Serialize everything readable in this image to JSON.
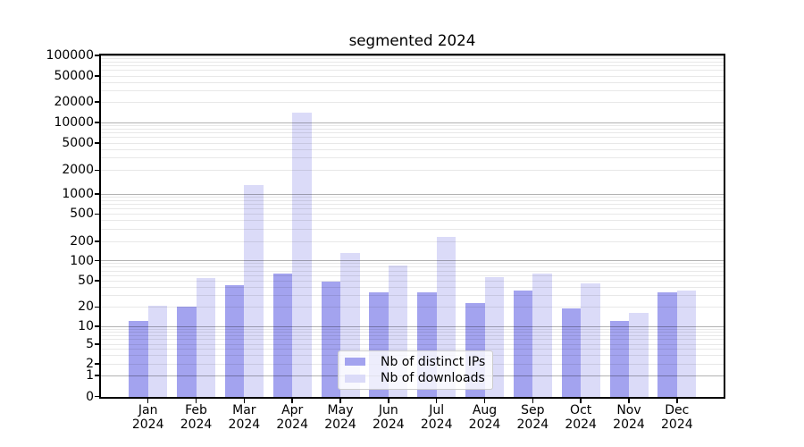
{
  "figure": {
    "background": "#ffffff"
  },
  "chart_data": {
    "type": "bar",
    "title": "segmented 2024",
    "categories": [
      "Jan",
      "Feb",
      "Mar",
      "Apr",
      "May",
      "Jun",
      "Jul",
      "Aug",
      "Sep",
      "Oct",
      "Nov",
      "Dec"
    ],
    "year_label": "2024",
    "series": [
      {
        "name": "Nb of distinct IPs",
        "color": "#a3a3ef",
        "values": [
          12,
          20,
          43,
          63,
          49,
          33,
          33,
          23,
          35,
          19,
          12,
          33
        ]
      },
      {
        "name": "Nb of downloads",
        "color": "#dbdbf8",
        "values": [
          21,
          55,
          1300,
          14000,
          130,
          85,
          230,
          57,
          64,
          45,
          16,
          36
        ]
      }
    ],
    "yscale": "log-like with 1-2-5 labeled steps, linear segment 0-1",
    "yticks": [
      0,
      1,
      2,
      5,
      10,
      20,
      50,
      100,
      200,
      500,
      1000,
      2000,
      5000,
      10000,
      20000,
      50000,
      100000
    ],
    "ytick_labels": [
      "0",
      "1",
      "2",
      "5",
      "10",
      "20",
      "50",
      "100",
      "200",
      "500",
      "1000",
      "2000",
      "5000",
      "10000",
      "20000",
      "50000",
      "100000"
    ],
    "ylim": [
      0,
      100000
    ],
    "grid": true,
    "grid_major_at": [
      1,
      10,
      100,
      1000,
      10000,
      100000
    ],
    "legend_position": "lower center"
  },
  "legend": {
    "items": [
      {
        "label": "Nb of distinct IPs",
        "color": "#a3a3ef"
      },
      {
        "label": "Nb of downloads",
        "color": "#dbdbf8"
      }
    ]
  }
}
